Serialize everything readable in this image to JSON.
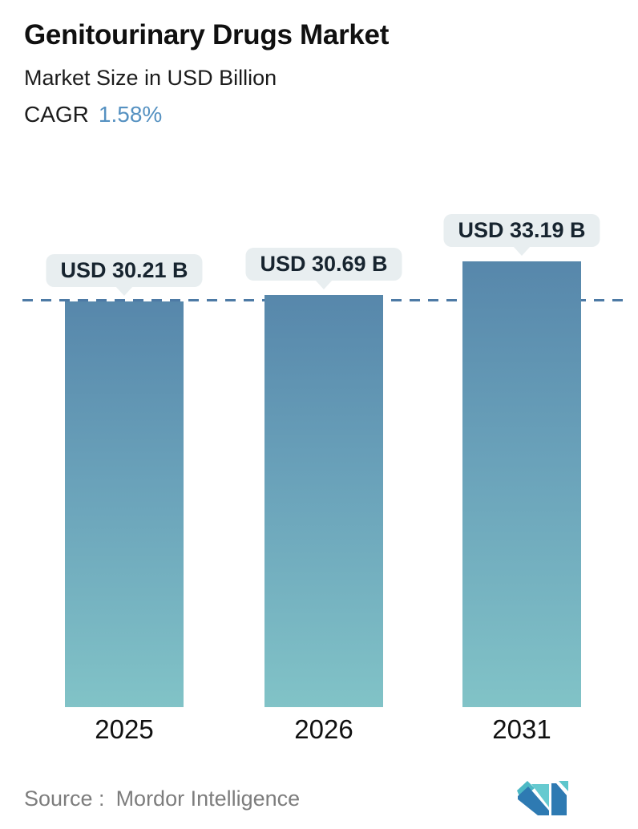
{
  "header": {
    "title": "Genitourinary Drugs Market",
    "subtitle": "Market Size in USD Billion",
    "cagr_label": "CAGR",
    "cagr_value": "1.58%"
  },
  "chart_data": {
    "type": "bar",
    "categories": [
      "2025",
      "2026",
      "2031"
    ],
    "values": [
      30.21,
      30.69,
      33.19
    ],
    "bar_labels": [
      "USD 30.21 B",
      "USD 30.69 B",
      "USD 33.19 B"
    ],
    "title": "Genitourinary Drugs Market",
    "xlabel": "",
    "ylabel": "Market Size in USD Billion",
    "ylim": [
      0,
      35
    ],
    "grid": false,
    "legend": false,
    "reference_line_value": 30.21,
    "reference_line_style": "dashed",
    "colors": {
      "bar_gradient_top": "#5787ab",
      "bar_gradient_bottom": "#81c3c7",
      "dashed_line": "#4d7aa5",
      "badge_background": "#e8eef0",
      "badge_text": "#17242f",
      "cagr_accent": "#5591c1",
      "source_text": "#7d7d7d",
      "logo_blue": "#2e7ab2",
      "logo_teal": "#5ec6cc"
    }
  },
  "footer": {
    "source_label": "Source :",
    "source_name": "Mordor Intelligence",
    "logo": "mordor-intelligence-logo"
  }
}
